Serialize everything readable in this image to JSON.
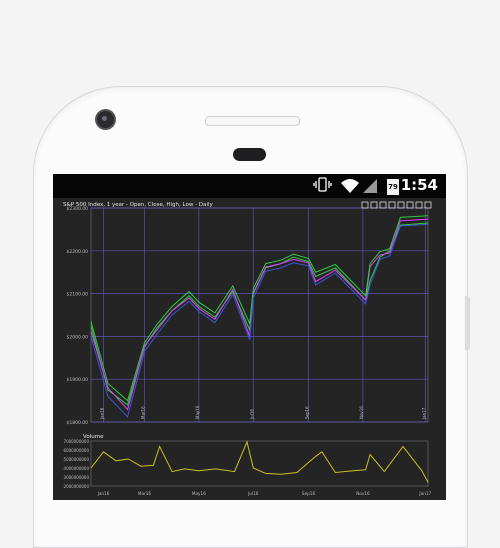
{
  "status_bar": {
    "time": "1:54",
    "battery_level": "79"
  },
  "chart_toolbar_icons": [
    "move-icon",
    "zoom-icon",
    "zoom-box-icon",
    "zoom-out-icon",
    "pan-icon",
    "reset-icon",
    "save-icon",
    "settings-icon"
  ],
  "colors": {
    "background": "#242424",
    "grid": "#6a5fd1",
    "open": "#2ecc40",
    "close": "#e040fb",
    "high": "#2ecc40",
    "low": "#3b56d8",
    "volume": "#c8c020"
  },
  "chart_data": [
    {
      "type": "line",
      "title": "S&P 500 Index, 1 year - Open, Close, High, Low - Daily",
      "yticks": [
        "$1800.00",
        "$1900.00",
        "$2000.00",
        "$2100.00",
        "$2200.00",
        "$2300.00"
      ],
      "ylim": [
        1800,
        2300
      ],
      "x": [
        "2016-01-01",
        "2016-01-20",
        "2016-02-11",
        "2016-03-01",
        "2016-03-15",
        "2016-04-01",
        "2016-04-20",
        "2016-05-01",
        "2016-05-19",
        "2016-06-08",
        "2016-06-27",
        "2016-07-01",
        "2016-07-15",
        "2016-08-01",
        "2016-08-15",
        "2016-09-01",
        "2016-09-09",
        "2016-10-01",
        "2016-11-04",
        "2016-11-09",
        "2016-11-20",
        "2016-12-01",
        "2016-12-13",
        "2017-01-13"
      ],
      "xticks": [
        "Jan16",
        "Mar16",
        "May16",
        "Jul16",
        "Sep16",
        "Nov16",
        "Jan17"
      ],
      "series": [
        {
          "name": "Open",
          "values": [
            2025,
            1875,
            1840,
            1975,
            2020,
            2060,
            2095,
            2070,
            2045,
            2105,
            2015,
            2100,
            2160,
            2170,
            2185,
            2175,
            2140,
            2160,
            2085,
            2130,
            2185,
            2200,
            2260,
            2265
          ]
        },
        {
          "name": "Close",
          "values": [
            2012,
            1880,
            1829,
            1978,
            2015,
            2060,
            2090,
            2065,
            2040,
            2110,
            2000,
            2102,
            2162,
            2170,
            2180,
            2172,
            2128,
            2155,
            2085,
            2163,
            2190,
            2195,
            2270,
            2274
          ]
        },
        {
          "name": "High",
          "values": [
            2035,
            1890,
            1850,
            1985,
            2028,
            2070,
            2105,
            2080,
            2055,
            2118,
            2030,
            2112,
            2170,
            2178,
            2192,
            2182,
            2150,
            2168,
            2095,
            2170,
            2198,
            2205,
            2278,
            2282
          ]
        },
        {
          "name": "Low",
          "values": [
            2000,
            1860,
            1812,
            1965,
            2005,
            2050,
            2082,
            2058,
            2032,
            2098,
            1992,
            2090,
            2152,
            2160,
            2172,
            2165,
            2120,
            2148,
            2076,
            2120,
            2180,
            2188,
            2258,
            2262
          ]
        }
      ]
    },
    {
      "type": "line",
      "title": "Volume",
      "yticks": [
        "2000000000",
        "3000000000",
        "4000000000",
        "5000000000",
        "6000000000",
        "7000000000"
      ],
      "ylim": [
        2000000000,
        7000000000
      ],
      "x": [
        "2016-01-01",
        "2016-01-15",
        "2016-01-29",
        "2016-02-12",
        "2016-02-26",
        "2016-03-11",
        "2016-03-18",
        "2016-04-01",
        "2016-04-15",
        "2016-05-01",
        "2016-05-20",
        "2016-06-10",
        "2016-06-24",
        "2016-07-01",
        "2016-07-15",
        "2016-08-01",
        "2016-08-19",
        "2016-09-09",
        "2016-09-16",
        "2016-10-01",
        "2016-10-21",
        "2016-11-04",
        "2016-11-09",
        "2016-11-25",
        "2016-12-16",
        "2017-01-06",
        "2017-01-13"
      ],
      "xticks": [
        "Jan16",
        "Mar16",
        "May16",
        "Jul16",
        "Sep16",
        "Nov16",
        "Jan17"
      ],
      "values": [
        4000000000,
        5800000000,
        4800000000,
        5000000000,
        4200000000,
        4300000000,
        6400000000,
        3600000000,
        3900000000,
        3700000000,
        3900000000,
        3600000000,
        6900000000,
        4000000000,
        3400000000,
        3300000000,
        3500000000,
        5300000000,
        5800000000,
        3500000000,
        3700000000,
        3800000000,
        5500000000,
        3600000000,
        6400000000,
        3700000000,
        2400000000
      ]
    }
  ]
}
